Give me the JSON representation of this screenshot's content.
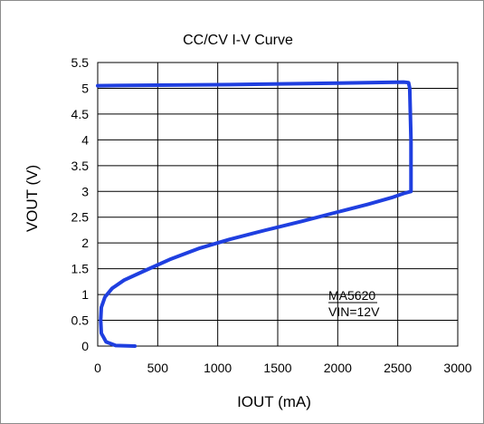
{
  "chart_data": {
    "type": "line",
    "title": "CC/CV I-V Curve",
    "xlabel": "IOUT (mA)",
    "ylabel": "VOUT (V)",
    "xlim": [
      0,
      3000
    ],
    "ylim": [
      0,
      5.5
    ],
    "xticks": [
      "0",
      "500",
      "1000",
      "1500",
      "2000",
      "2500",
      "3000"
    ],
    "yticks": [
      "0",
      "0.5",
      "1",
      "1.5",
      "2",
      "2.5",
      "3",
      "3.5",
      "4",
      "4.5",
      "5",
      "5.5"
    ],
    "grid": true,
    "line_color": "#1f3fe0",
    "annotations": [
      "MA5620",
      "VIN=12V"
    ],
    "series": [
      {
        "x": [
          310,
          150,
          70,
          30,
          25,
          30,
          60,
          120,
          220,
          380,
          600,
          850,
          1100,
          1400,
          1700,
          2000,
          2250,
          2450,
          2550,
          2610,
          2610,
          2600,
          2590,
          2550,
          2000,
          1000,
          500,
          0
        ],
        "y": [
          0,
          0.01,
          0.08,
          0.25,
          0.5,
          0.75,
          0.95,
          1.12,
          1.28,
          1.45,
          1.68,
          1.9,
          2.07,
          2.25,
          2.42,
          2.6,
          2.75,
          2.88,
          2.96,
          3.0,
          4.0,
          5.0,
          5.11,
          5.12,
          5.1,
          5.07,
          5.06,
          5.05
        ]
      }
    ]
  }
}
